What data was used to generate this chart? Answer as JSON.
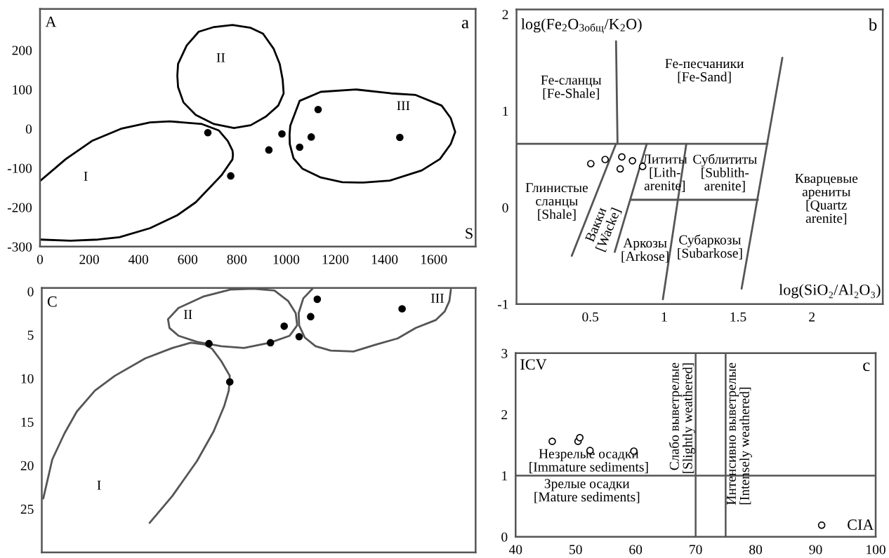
{
  "chart_data": [
    {
      "type": "scatter",
      "title": "a",
      "xlabel": "S",
      "ylabel": "A",
      "xlim": [
        0,
        1770
      ],
      "ylim": [
        -300,
        305
      ],
      "xticks": [
        0,
        200,
        400,
        600,
        800,
        1000,
        1200,
        1400,
        1600
      ],
      "yticks": [
        -300,
        -200,
        -100,
        0,
        100,
        200
      ],
      "annotations": [
        "I",
        "II",
        "III"
      ],
      "series": [
        {
          "color": "#000000",
          "marker": "circle",
          "x": [
            682,
            775,
            930,
            983,
            1055,
            1102,
            1130,
            1462
          ],
          "values": [
            -10,
            -120,
            -54,
            -13,
            -47,
            -21,
            49,
            -22
          ]
        },
        {
          "type": "line",
          "color": "#000000",
          "x": [
            0,
            105,
            211,
            329,
            447,
            527,
            658,
            726,
            763,
            782,
            784,
            782,
            738,
            633,
            558,
            447,
            323,
            236,
            124,
            0
          ],
          "values": [
            -133,
            -77,
            -31,
            0,
            16,
            19,
            12,
            -4,
            -31,
            -55,
            -66,
            -78,
            -118,
            -187,
            -220,
            -253,
            -276,
            -282,
            -285,
            -282
          ]
        }
      ]
    },
    {
      "type": "scatter",
      "title": "b",
      "xlabel": "log(SiO₂/Al₂O₃)",
      "ylabel": "log(Fe$_{2}$O$_{3общ}$/K$_{2}$O)",
      "xlim": [
        0,
        2.48
      ],
      "ylim": [
        -1,
        2.05
      ],
      "xticks": [
        0.5,
        1,
        1.5,
        2
      ],
      "yticks": [
        -1,
        0,
        1,
        2
      ],
      "annotations": [
        "Fe-сланцы\n[Fe-Shale]",
        "Fe-песчаники\n[Fe-Sand]",
        "Лититы\n[Lith-\narenite]",
        "Сублититы\n[Sublith-\narenite]",
        "Глинистые\nсланцы\n[Shale]",
        "Кварцевые\nарениты\n[Quartz\narenite]",
        "Вакки\n[Wacke]",
        "Аркозы\n[Arkose]",
        "Субаркозы\n[Subarkose]"
      ],
      "series": [
        {
          "color": "#ffffff",
          "marker": "circle",
          "x": [
            0.503,
            0.6,
            0.713,
            0.702,
            0.785,
            0.854
          ],
          "values": [
            0.454,
            0.497,
            0.524,
            0.4,
            0.484,
            0.425
          ]
        },
        {
          "type": "line",
          "color": "#555555",
          "x": [
            0,
            1.7
          ],
          "values": [
            0.66,
            0.66
          ]
        },
        {
          "type": "line",
          "color": "#555555",
          "x": [
            0.674,
            0.684
          ],
          "values": [
            1.72,
            0.66
          ]
        },
        {
          "type": "line",
          "color": "#555555",
          "x": [
            1.8,
            1.524
          ],
          "values": [
            1.55,
            -0.84
          ]
        },
        {
          "type": "line",
          "color": "#555555",
          "x": [
            0.674,
            0.374
          ],
          "values": [
            0.66,
            -0.5
          ]
        },
        {
          "type": "line",
          "color": "#555555",
          "x": [
            0.882,
            0.665
          ],
          "values": [
            0.66,
            -0.46
          ]
        },
        {
          "type": "line",
          "color": "#555555",
          "x": [
            1.15,
            0.991
          ],
          "values": [
            0.66,
            -0.95
          ]
        },
        {
          "type": "line",
          "color": "#555555",
          "x": [
            0.774,
            1.635
          ],
          "values": [
            0.08,
            0.08
          ]
        }
      ]
    },
    {
      "type": "scatter",
      "ylabel": "C",
      "tick_labels": "y",
      "xlim": [
        0,
        1770
      ],
      "ylim": [
        30,
        -0.4
      ],
      "xticks": [
        0,
        200,
        400,
        600,
        800,
        1000,
        1200,
        1400,
        1600
      ],
      "yticks": [
        0,
        5,
        10,
        15,
        20,
        25
      ],
      "annotations": [
        "I",
        "II",
        "III"
      ],
      "series": [
        {
          "color": "#000000",
          "marker": "circle",
          "x": [
            682,
            767,
            933,
            989,
            1050,
            1097,
            1124,
            1470
          ],
          "values": [
            6.0,
            10.4,
            5.9,
            4.0,
            5.2,
            2.9,
            0.9,
            2.0
          ]
        },
        {
          "type": "line",
          "color": "#555555",
          "x": [
            6,
            43,
            93,
            143,
            217,
            298,
            422,
            533,
            608,
            664,
            695,
            732,
            767,
            763,
            744,
            701,
            633,
            533,
            440
          ],
          "values": [
            23.8,
            19.3,
            16.3,
            13.8,
            11.4,
            9.7,
            7.7,
            6.5,
            5.9,
            6.1,
            6.6,
            8.0,
            9.7,
            11.4,
            13.2,
            16.1,
            19.5,
            23.5,
            26.6
          ]
        }
      ]
    },
    {
      "type": "scatter",
      "title": "c",
      "xlabel": "CIA",
      "ylabel": "ICV",
      "xlim": [
        40,
        100
      ],
      "ylim": [
        0,
        3
      ],
      "xticks": [
        40,
        50,
        60,
        70,
        80,
        90,
        100
      ],
      "yticks": [
        0,
        1,
        2,
        3
      ],
      "ref_lines": [
        {
          "axis": "x",
          "value": 70,
          "label": "Слабо выветрелые\n[Slightly weathered]",
          "color": "#555555"
        },
        {
          "axis": "x",
          "value": 75,
          "label": "Интенсивно выветрелые\n[Intensely weathered]",
          "color": "#555555"
        },
        {
          "axis": "y",
          "value": 1,
          "color": "#555555"
        }
      ],
      "annotations": [
        "Незрелые осадки\n[Immature sediments]",
        "Зрелые осадки\n[Mature sediments]"
      ],
      "series": [
        {
          "color": "#ffffff",
          "marker": "circle",
          "x": [
            46.1,
            50.4,
            50.7,
            52.4,
            59.7,
            91.0
          ],
          "values": [
            1.56,
            1.56,
            1.62,
            1.41,
            1.4,
            0.19
          ]
        }
      ]
    }
  ]
}
